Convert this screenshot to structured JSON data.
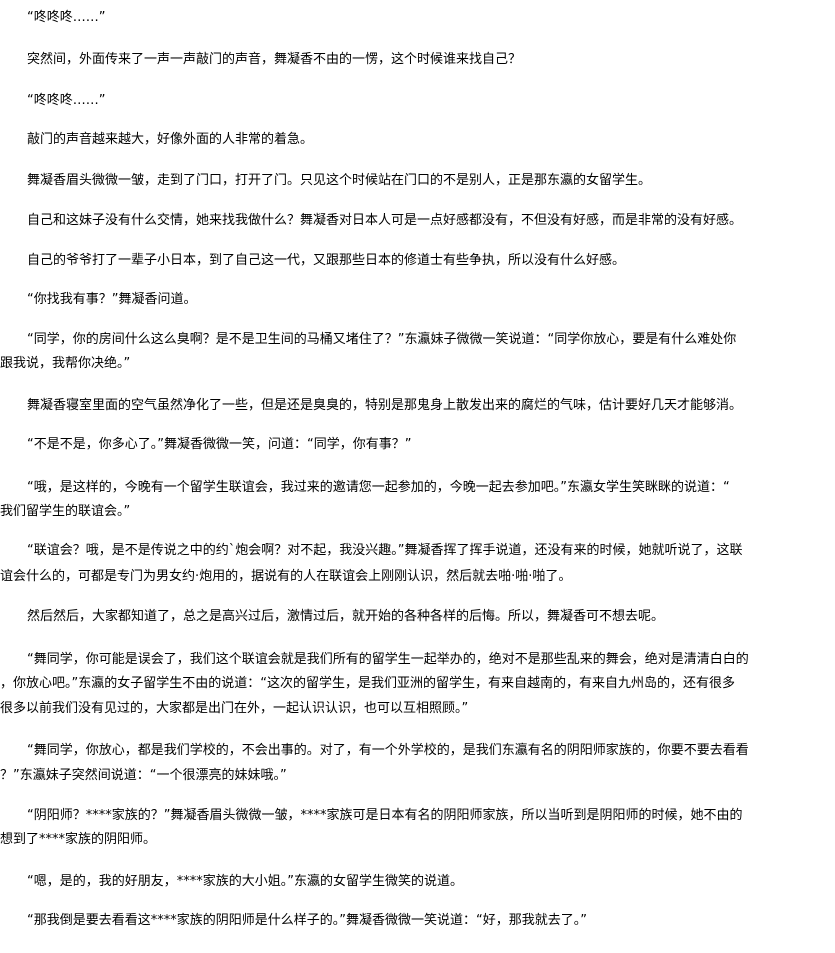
{
  "paragraphs": [
    {
      "lines": [
        "“咚咚咚……”"
      ]
    },
    {
      "lines": [
        "突然间，外面传来了一声一声敲门的声音，舞凝香不由的一愣，这个时候谁来找自己？"
      ]
    },
    {
      "lines": [
        "“咚咚咚……”"
      ]
    },
    {
      "lines": [
        "敲门的声音越来越大，好像外面的人非常的着急。"
      ]
    },
    {
      "lines": [
        "舞凝香眉头微微一皱，走到了门口，打开了门。只见这个时候站在门口的不是别人，正是那东瀛的女留学生。"
      ]
    },
    {
      "lines": [
        "自己和这妹子没有什么交情，她来找我做什么？舞凝香对日本人可是一点好感都没有，不但没有好感，而是非常的没有好感。"
      ]
    },
    {
      "lines": [
        "自己的爷爷打了一辈子小日本，到了自己这一代，又跟那些日本的修道士有些争执，所以没有什么好感。"
      ]
    },
    {
      "lines": [
        "“你找我有事？”舞凝香问道。"
      ]
    },
    {
      "lines": [
        "“同学，你的房间什么这么臭啊？是不是卫生间的马桶又堵住了？”东瀛妹子微微一笑说道：“同学你放心，要是有什么难处你",
        "跟我说，我帮你决绝。”"
      ]
    },
    {
      "lines": [
        "舞凝香寝室里面的空气虽然净化了一些，但是还是臭臭的，特别是那鬼身上散发出来的腐烂的气味，估计要好几天才能够消。"
      ]
    },
    {
      "lines": [
        "“不是不是，你多心了。”舞凝香微微一笑，问道：“同学，你有事？”"
      ]
    },
    {
      "lines": [
        "“哦，是这样的，今晚有一个留学生联谊会，我过来的邀请您一起参加的，今晚一起去参加吧。”东瀛女学生笑眯眯的说道：“",
        "我们留学生的联谊会。”"
      ]
    },
    {
      "lines": [
        "“联谊会？哦，是不是传说之中的约`炮会啊？对不起，我没兴趣。”舞凝香挥了挥手说道，还没有来的时候，她就听说了，这联",
        "谊会什么的，可都是专门为男女约·炮用的，据说有的人在联谊会上刚刚认识，然后就去啪·啪·啪了。"
      ]
    },
    {
      "lines": [
        "然后然后，大家都知道了，总之是高兴过后，激情过后，就开始的各种各样的后悔。所以，舞凝香可不想去呢。"
      ]
    },
    {
      "lines": [
        "“舞同学，你可能是误会了，我们这个联谊会就是我们所有的留学生一起举办的，绝对不是那些乱来的舞会，绝对是清清白白的",
        "，你放心吧。”东瀛的女子留学生不由的说道：“这次的留学生，是我们亚洲的留学生，有来自越南的，有来自九州岛的，还有很多",
        "很多以前我们没有见过的，大家都是出门在外，一起认识认识，也可以互相照顾。”"
      ]
    },
    {
      "lines": [
        "“舞同学，你放心，都是我们学校的，不会出事的。对了，有一个外学校的，是我们东瀛有名的阴阳师家族的，你要不要去看看",
        "？”东瀛妹子突然间说道：“一个很漂亮的妹妹哦。”"
      ]
    },
    {
      "lines": [
        "“阴阳师？****家族的？”舞凝香眉头微微一皱，****家族可是日本有名的阴阳师家族，所以当听到是阴阳师的时候，她不由的",
        "想到了****家族的阴阳师。"
      ]
    },
    {
      "lines": [
        "“嗯，是的，我的好朋友，****家族的大小姐。”东瀛的女留学生微笑的说道。"
      ]
    },
    {
      "lines": [
        "“那我倒是要去看看这****家族的阴阳师是什么样子的。”舞凝香微微一笑说道：“好，那我就去了。”"
      ]
    }
  ]
}
